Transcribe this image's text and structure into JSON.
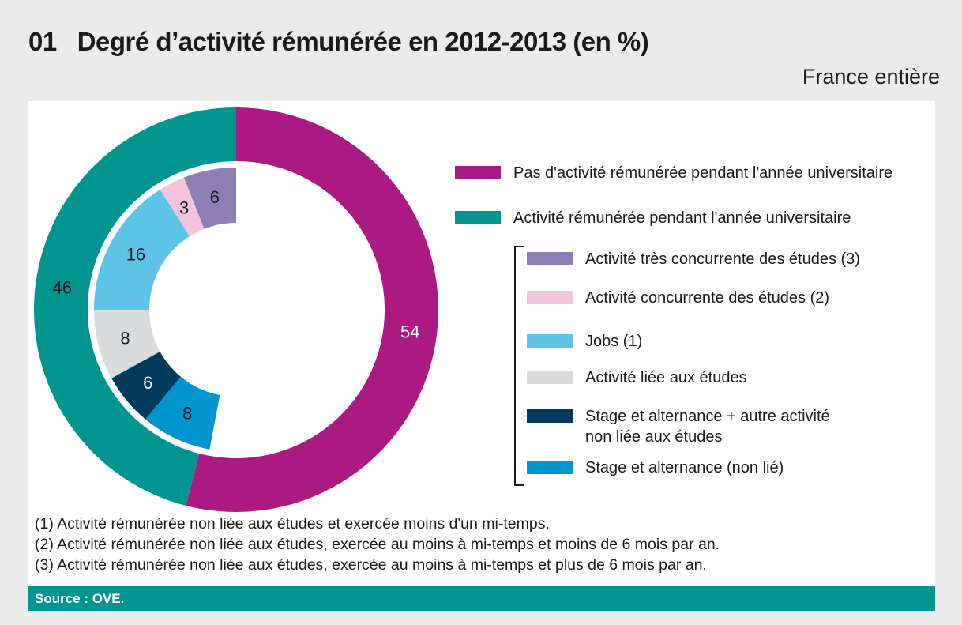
{
  "header": {
    "number": "01",
    "title": "Degré d’activité rémunérée en 2012-2013 (en %)",
    "scope": "France entière"
  },
  "chart_data": {
    "type": "pie",
    "variant": "nested-donut",
    "title": "Degré d’activité rémunérée en 2012-2013 (en %)",
    "outer_ring": [
      {
        "label": "Pas d'activité rémunérée pendant l'année universitaire",
        "value": 54,
        "color": "#ab1a82"
      },
      {
        "label": "Activité rémunérée pendant l'année universitaire",
        "value": 46,
        "color": "#00968f"
      }
    ],
    "inner_ring": [
      {
        "label": "Activité très concurrente des études (3)",
        "value": 6,
        "color": "#8d7fb6"
      },
      {
        "label": "Activité concurrente des études (2)",
        "value": 3,
        "color": "#f2c4dc"
      },
      {
        "label": "Jobs (1)",
        "value": 16,
        "color": "#5dc4e8"
      },
      {
        "label": "Activité liée aux études",
        "value": 8,
        "color": "#dadbdd"
      },
      {
        "label": "Stage et alternance + autre activité\nnon liée aux études",
        "value": 6,
        "color": "#003a5c"
      },
      {
        "label": "Stage et alternance (non lié)",
        "value": 8,
        "color": "#0095cf"
      }
    ],
    "inner_label_colors": [
      "#1a1a1a",
      "#1a1a1a",
      "#1a1a1a",
      "#1a1a1a",
      "#ffffff",
      "#1a1a1a"
    ],
    "outer_label_colors": [
      "#ffffff",
      "#1a1a1a"
    ]
  },
  "notes": [
    "(1) Activité rémunérée non liée aux études et exercée moins d'un mi-temps.",
    "(2) Activité rémunérée non liée aux études, exercée au moins à mi-temps et moins de 6 mois par an.",
    "(3) Activité rémunérée non liée aux études, exercée au moins à mi-temps et plus de 6 mois par an."
  ],
  "source": "Source : OVE."
}
